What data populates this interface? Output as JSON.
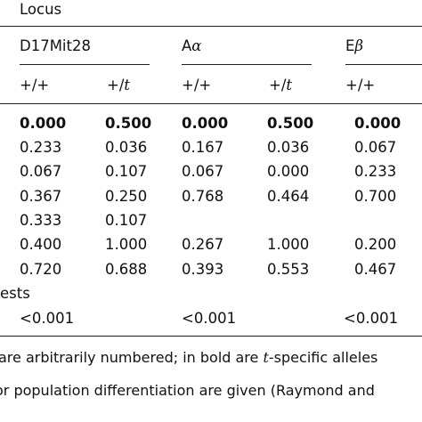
{
  "header": {
    "locus_label": "Locus",
    "loci": [
      "D17Mit28",
      "A",
      "E"
    ],
    "loci_greek": [
      "",
      "α",
      "β"
    ],
    "cols": [
      "+/+",
      "+/",
      "+/+",
      "+/",
      "+/+"
    ],
    "cols_italic_t": [
      "",
      "t",
      "",
      "t",
      ""
    ]
  },
  "rows": [
    [
      "0.000",
      "0.500",
      "0.000",
      "0.500",
      "0.000"
    ],
    [
      "0.233",
      "0.036",
      "0.167",
      "0.036",
      "0.067"
    ],
    [
      "0.067",
      "0.107",
      "0.067",
      "0.000",
      "0.233"
    ],
    [
      "0.367",
      "0.250",
      "0.768",
      "0.464",
      "0.700"
    ],
    [
      "0.333",
      "0.107",
      "",
      "",
      ""
    ],
    [
      "0.400",
      "1.000",
      "0.267",
      "1.000",
      "0.200"
    ],
    [
      "0.720",
      "0.688",
      "0.393",
      "0.553",
      "0.467"
    ]
  ],
  "tests_label": "ests",
  "pvalues": [
    "<0.001",
    "<0.001",
    "<0.001"
  ],
  "footnote": {
    "line1_pre": "are arbitrarily numbered; in bold are ",
    "line1_t": "t",
    "line1_post": "-specific alleles",
    "line2": "or population differentiation are given (Raymond and"
  }
}
